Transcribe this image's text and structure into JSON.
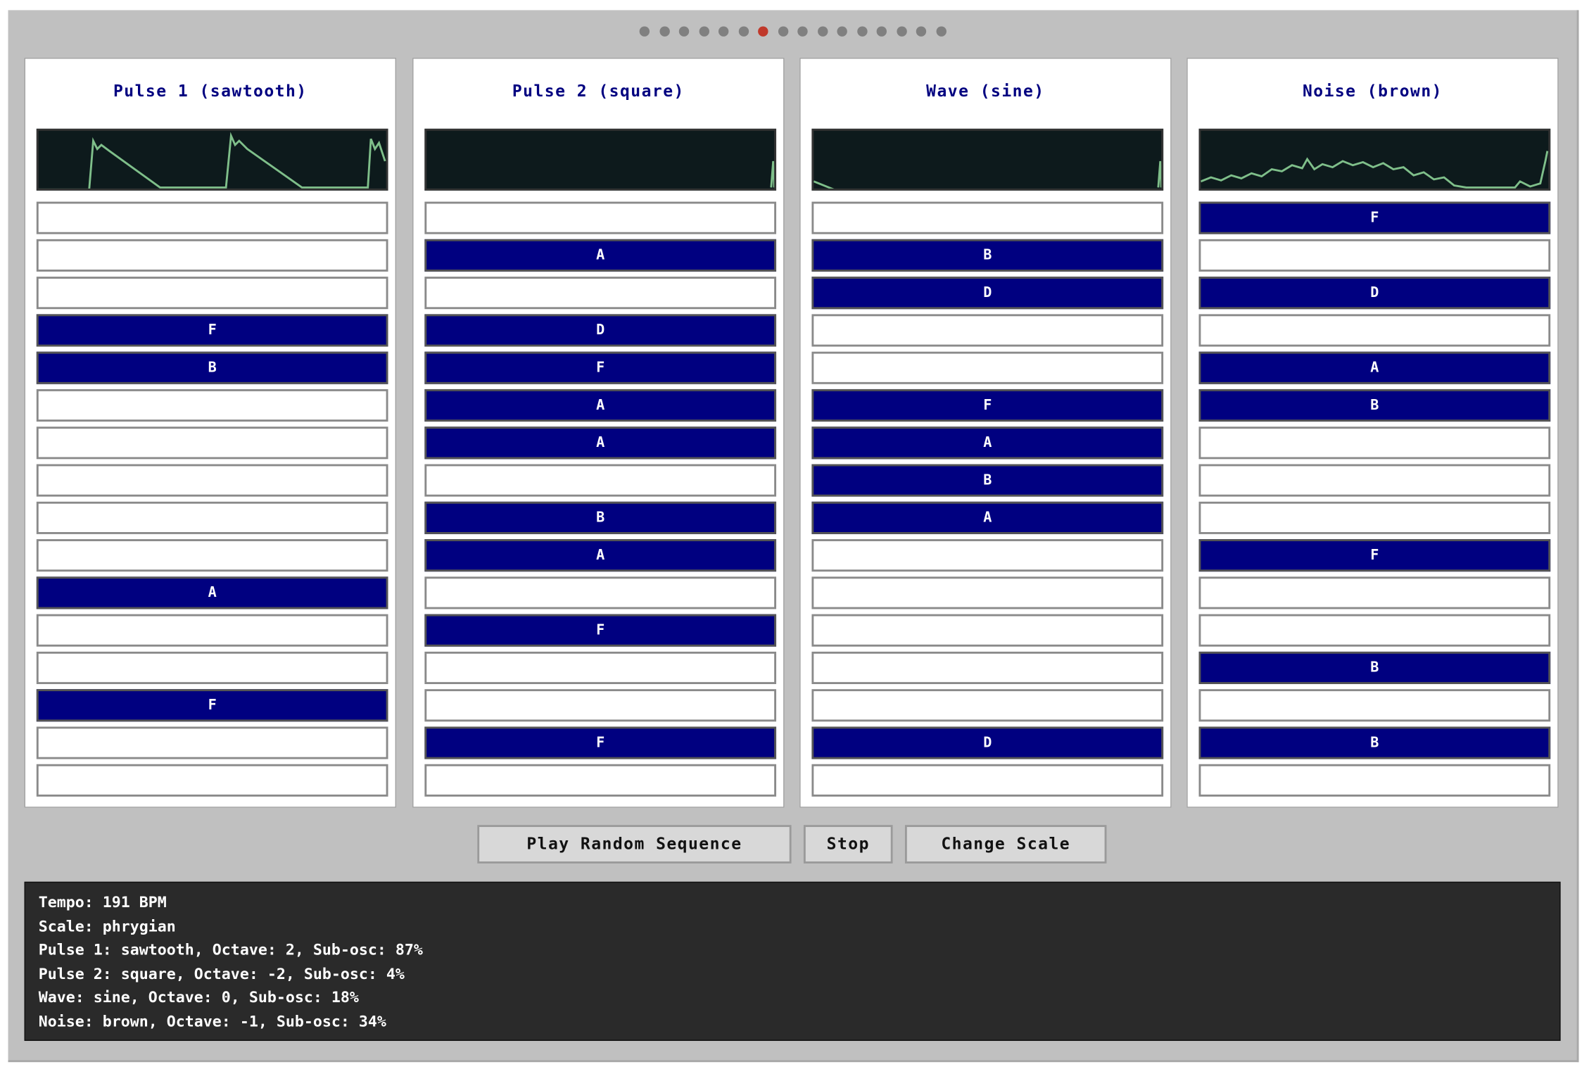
{
  "channels": [
    {
      "title": "Pulse 1 (sawtooth)",
      "steps": [
        null,
        null,
        null,
        "F",
        "B",
        null,
        null,
        null,
        null,
        null,
        "A",
        null,
        null,
        "F",
        null,
        null
      ]
    },
    {
      "title": "Pulse 2 (square)",
      "steps": [
        null,
        "A",
        null,
        "D",
        "F",
        "A",
        "A",
        null,
        "B",
        "A",
        null,
        "F",
        null,
        null,
        "F",
        null
      ]
    },
    {
      "title": "Wave (sine)",
      "steps": [
        null,
        "B",
        "D",
        null,
        null,
        "F",
        "A",
        "B",
        "A",
        null,
        null,
        null,
        null,
        null,
        "D",
        null
      ]
    },
    {
      "title": "Noise (brown)",
      "steps": [
        "F",
        null,
        "D",
        null,
        "A",
        "B",
        null,
        null,
        null,
        "F",
        null,
        null,
        "B",
        null,
        "B",
        null
      ]
    }
  ],
  "buttons": [
    "Play Random Sequence",
    "Stop",
    "Change Scale"
  ],
  "status": [
    "Tempo: 191 BPM",
    "Scale: phrygian",
    "Pulse 1: sawtooth, Octave: 2, Sub-osc: 87%",
    "Pulse 2: square, Octave: -2, Sub-osc: 4%",
    "Wave: sine, Octave: 0, Sub-osc: 18%",
    "Noise: brown, Octave: -1, Sub-osc: 34%"
  ]
}
